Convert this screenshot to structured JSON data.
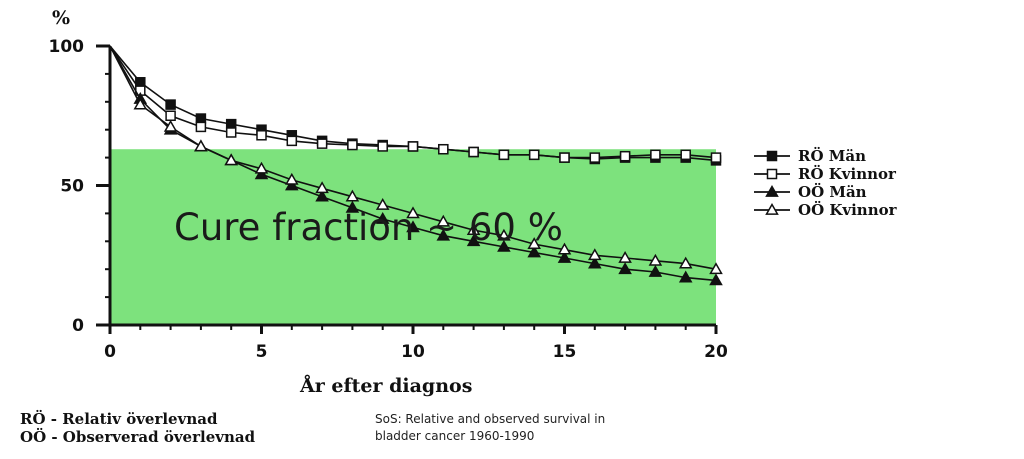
{
  "chart_data": {
    "type": "line",
    "ylabel": "%",
    "xlabel": "År efter diagnos",
    "xlim": [
      0,
      20
    ],
    "ylim": [
      0,
      100
    ],
    "x_ticks": [
      "0",
      "5",
      "10",
      "15",
      "20"
    ],
    "y_ticks": [
      "0",
      "50",
      "100"
    ],
    "grid": false,
    "legend_position": "right",
    "series": [
      {
        "name": "RÖ Män",
        "marker": "filled-square",
        "points": [
          [
            0,
            100
          ],
          [
            1,
            87
          ],
          [
            2,
            79
          ],
          [
            3,
            74
          ],
          [
            4,
            72
          ],
          [
            5,
            70
          ],
          [
            6,
            68
          ],
          [
            7,
            66
          ],
          [
            8,
            65
          ],
          [
            9,
            64.5
          ],
          [
            10,
            64
          ],
          [
            11,
            63
          ],
          [
            12,
            62
          ],
          [
            13,
            61
          ],
          [
            14,
            61
          ],
          [
            15,
            60
          ],
          [
            16,
            59.5
          ],
          [
            17,
            60
          ],
          [
            18,
            60
          ],
          [
            19,
            60
          ],
          [
            20,
            59
          ]
        ]
      },
      {
        "name": "RÖ Kvinnor",
        "marker": "open-square",
        "points": [
          [
            0,
            100
          ],
          [
            1,
            84
          ],
          [
            2,
            75
          ],
          [
            3,
            71
          ],
          [
            4,
            69
          ],
          [
            5,
            68
          ],
          [
            6,
            66
          ],
          [
            7,
            65
          ],
          [
            8,
            64.5
          ],
          [
            9,
            64
          ],
          [
            10,
            64
          ],
          [
            11,
            63
          ],
          [
            12,
            62
          ],
          [
            13,
            61
          ],
          [
            14,
            61
          ],
          [
            15,
            60
          ],
          [
            16,
            60
          ],
          [
            17,
            60.5
          ],
          [
            18,
            61
          ],
          [
            19,
            61
          ],
          [
            20,
            60
          ]
        ]
      },
      {
        "name": "OÖ Män",
        "marker": "filled-triangle",
        "points": [
          [
            0,
            100
          ],
          [
            1,
            81
          ],
          [
            2,
            70
          ],
          [
            3,
            64
          ],
          [
            4,
            59
          ],
          [
            5,
            54
          ],
          [
            6,
            50
          ],
          [
            7,
            46
          ],
          [
            8,
            42
          ],
          [
            9,
            38
          ],
          [
            10,
            35
          ],
          [
            11,
            32
          ],
          [
            12,
            30
          ],
          [
            13,
            28
          ],
          [
            14,
            26
          ],
          [
            15,
            24
          ],
          [
            16,
            22
          ],
          [
            17,
            20
          ],
          [
            18,
            19
          ],
          [
            19,
            17
          ],
          [
            20,
            16
          ]
        ]
      },
      {
        "name": "OÖ Kvinnor",
        "marker": "open-triangle",
        "points": [
          [
            0,
            100
          ],
          [
            1,
            79
          ],
          [
            2,
            71
          ],
          [
            3,
            64
          ],
          [
            4,
            59
          ],
          [
            5,
            56
          ],
          [
            6,
            52
          ],
          [
            7,
            49
          ],
          [
            8,
            46
          ],
          [
            9,
            43
          ],
          [
            10,
            40
          ],
          [
            11,
            37
          ],
          [
            12,
            34
          ],
          [
            13,
            32
          ],
          [
            14,
            29
          ],
          [
            15,
            27
          ],
          [
            16,
            25
          ],
          [
            17,
            24
          ],
          [
            18,
            23
          ],
          [
            19,
            22
          ],
          [
            20,
            20
          ]
        ]
      }
    ],
    "cure_fraction_band": {
      "from_x": 0,
      "to_x": 20,
      "level": 63,
      "color": "#7de27d"
    },
    "annotation": "Cure fraction ~ 60 %",
    "footnotes": [
      "RÖ - Relativ överlevnad",
      "OÖ - Observerad överlevnad"
    ],
    "source_note": [
      "SoS: Relative and observed survival in",
      "bladder cancer 1960-1990"
    ]
  }
}
